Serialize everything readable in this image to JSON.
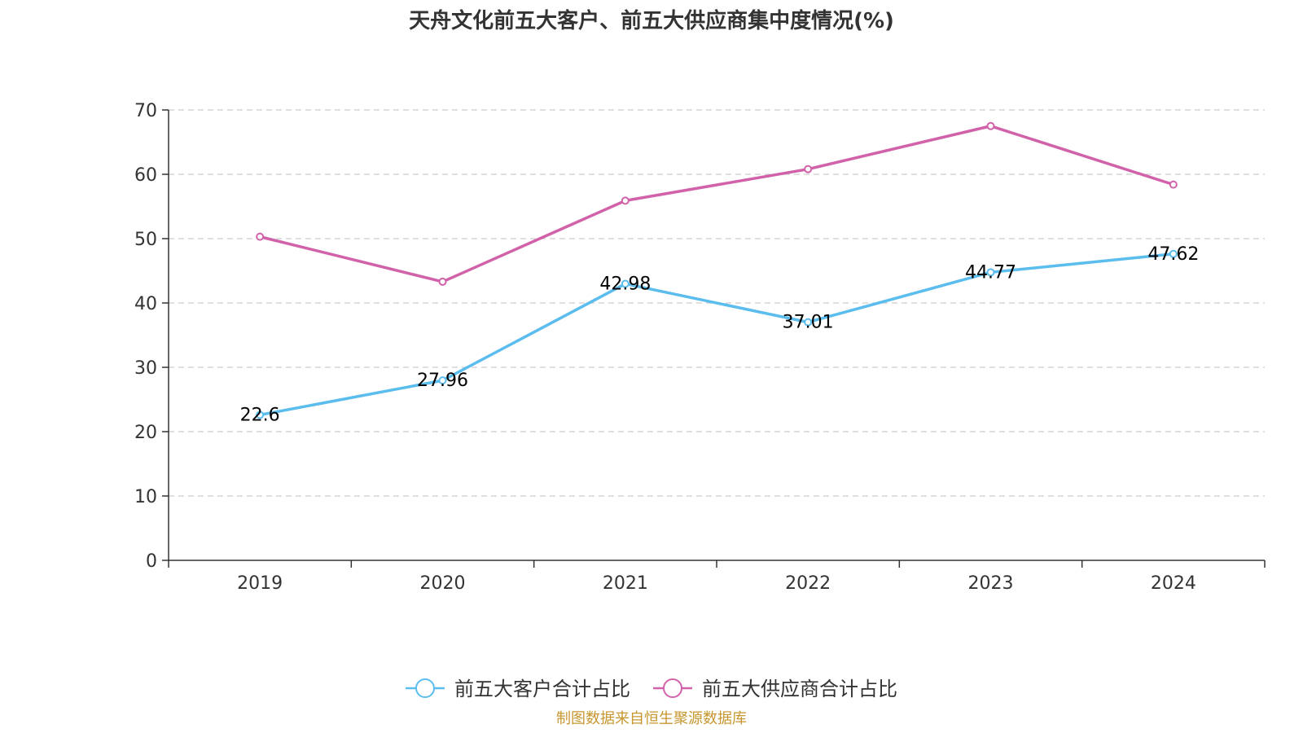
{
  "chart_data": {
    "type": "line",
    "title": "天舟文化前五大客户、前五大供应商集中度情况(%)",
    "categories": [
      "2019",
      "2020",
      "2021",
      "2022",
      "2023",
      "2024"
    ],
    "ylim": [
      0,
      70
    ],
    "yticks": [
      0,
      10,
      20,
      30,
      40,
      50,
      60,
      70
    ],
    "grid": true,
    "legend_position": "bottom-center",
    "series": [
      {
        "name": "前五大客户合计占比",
        "color": "#5bbcee",
        "values": [
          22.6,
          27.96,
          42.98,
          37.01,
          44.77,
          47.62
        ],
        "labels": [
          "22.6",
          "27.96",
          "42.98",
          "37.01",
          "44.77",
          "47.62"
        ]
      },
      {
        "name": "前五大供应商合计占比",
        "color": "#d162a9",
        "values": [
          50.3,
          43.3,
          55.9,
          60.8,
          67.5,
          58.4
        ]
      }
    ]
  },
  "footer": {
    "source": "制图数据来自恒生聚源数据库"
  },
  "colors": {
    "axis": "#333333",
    "grid": "#cccccc",
    "source": "#c8962e"
  }
}
